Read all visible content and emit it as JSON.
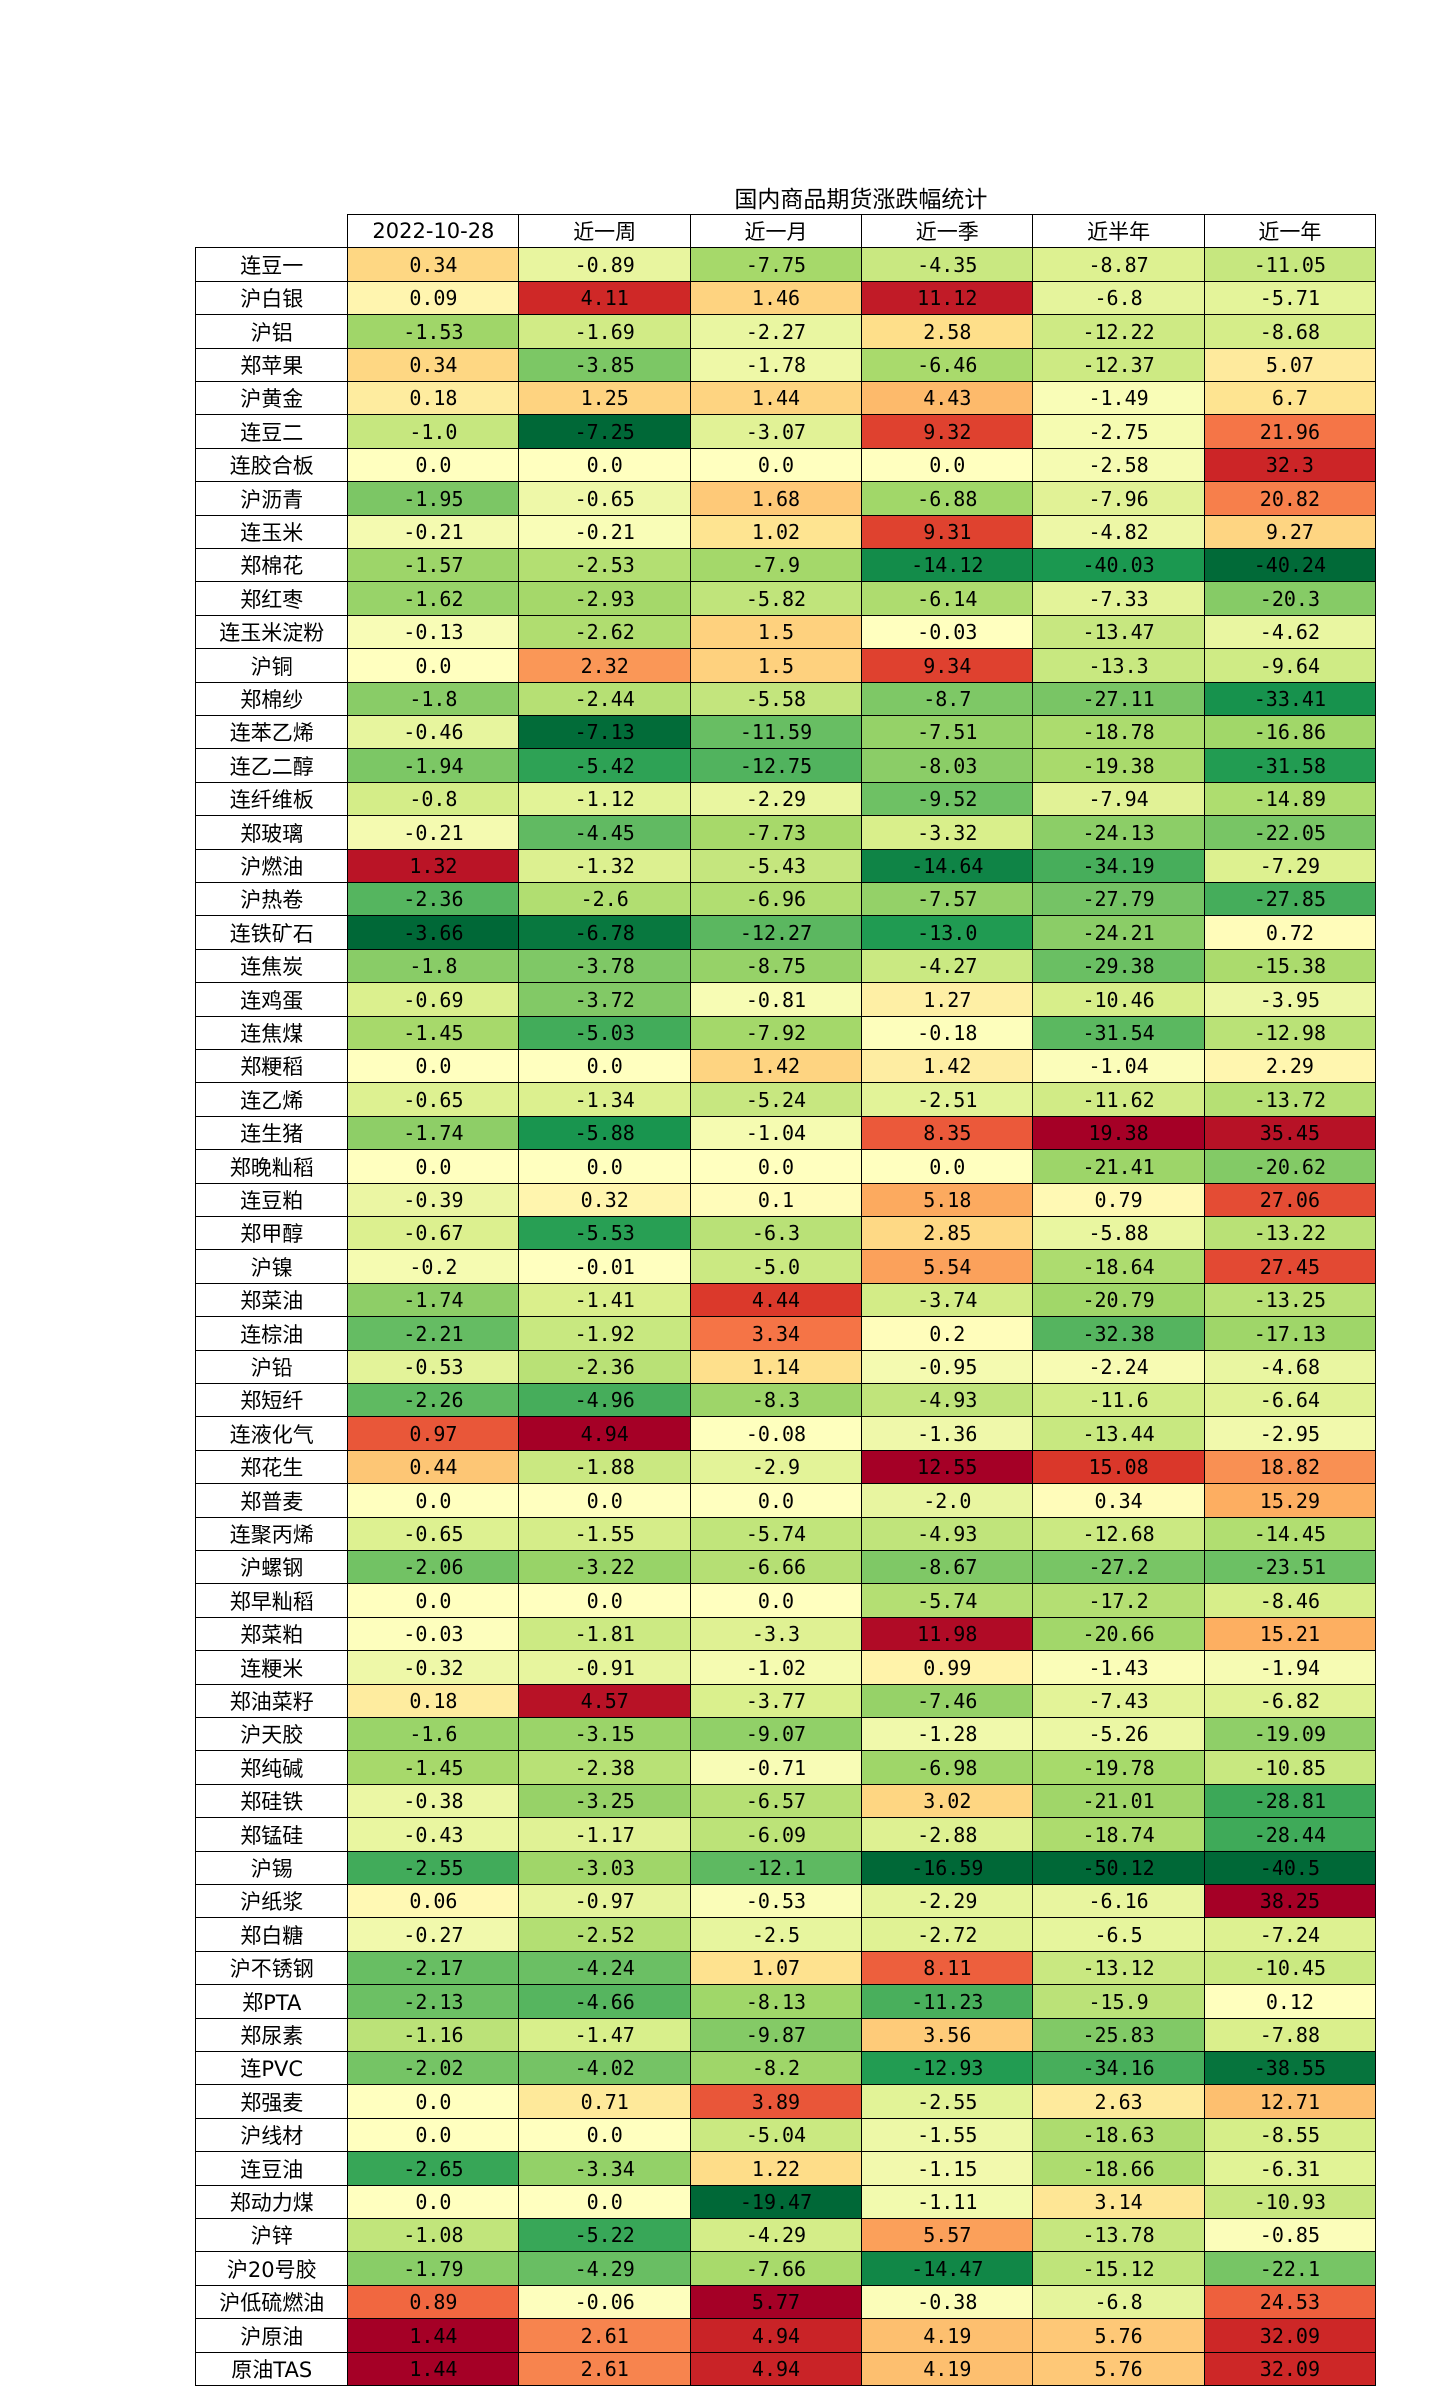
{
  "table": {
    "title": "国内商品期货涨跌幅统计",
    "columns": [
      "2022-10-28",
      "近一周",
      "近一月",
      "近一季",
      "近半年",
      "近一年"
    ],
    "rows": [
      [
        "连豆一",
        "0.34",
        "-0.89",
        "-7.75",
        "-4.35",
        "-8.87",
        "-11.05"
      ],
      [
        "沪白银",
        "0.09",
        "4.11",
        "1.46",
        "11.12",
        "-6.8",
        "-5.71"
      ],
      [
        "沪铝",
        "-1.53",
        "-1.69",
        "-2.27",
        "2.58",
        "-12.22",
        "-8.68"
      ],
      [
        "郑苹果",
        "0.34",
        "-3.85",
        "-1.78",
        "-6.46",
        "-12.37",
        "5.07"
      ],
      [
        "沪黄金",
        "0.18",
        "1.25",
        "1.44",
        "4.43",
        "-1.49",
        "6.7"
      ],
      [
        "连豆二",
        "-1.0",
        "-7.25",
        "-3.07",
        "9.32",
        "-2.75",
        "21.96"
      ],
      [
        "连胶合板",
        "0.0",
        "0.0",
        "0.0",
        "0.0",
        "-2.58",
        "32.3"
      ],
      [
        "沪沥青",
        "-1.95",
        "-0.65",
        "1.68",
        "-6.88",
        "-7.96",
        "20.82"
      ],
      [
        "连玉米",
        "-0.21",
        "-0.21",
        "1.02",
        "9.31",
        "-4.82",
        "9.27"
      ],
      [
        "郑棉花",
        "-1.57",
        "-2.53",
        "-7.9",
        "-14.12",
        "-40.03",
        "-40.24"
      ],
      [
        "郑红枣",
        "-1.62",
        "-2.93",
        "-5.82",
        "-6.14",
        "-7.33",
        "-20.3"
      ],
      [
        "连玉米淀粉",
        "-0.13",
        "-2.62",
        "1.5",
        "-0.03",
        "-13.47",
        "-4.62"
      ],
      [
        "沪铜",
        "0.0",
        "2.32",
        "1.5",
        "9.34",
        "-13.3",
        "-9.64"
      ],
      [
        "郑棉纱",
        "-1.8",
        "-2.44",
        "-5.58",
        "-8.7",
        "-27.11",
        "-33.41"
      ],
      [
        "连苯乙烯",
        "-0.46",
        "-7.13",
        "-11.59",
        "-7.51",
        "-18.78",
        "-16.86"
      ],
      [
        "连乙二醇",
        "-1.94",
        "-5.42",
        "-12.75",
        "-8.03",
        "-19.38",
        "-31.58"
      ],
      [
        "连纤维板",
        "-0.8",
        "-1.12",
        "-2.29",
        "-9.52",
        "-7.94",
        "-14.89"
      ],
      [
        "郑玻璃",
        "-0.21",
        "-4.45",
        "-7.73",
        "-3.32",
        "-24.13",
        "-22.05"
      ],
      [
        "沪燃油",
        "1.32",
        "-1.32",
        "-5.43",
        "-14.64",
        "-34.19",
        "-7.29"
      ],
      [
        "沪热卷",
        "-2.36",
        "-2.6",
        "-6.96",
        "-7.57",
        "-27.79",
        "-27.85"
      ],
      [
        "连铁矿石",
        "-3.66",
        "-6.78",
        "-12.27",
        "-13.0",
        "-24.21",
        "0.72"
      ],
      [
        "连焦炭",
        "-1.8",
        "-3.78",
        "-8.75",
        "-4.27",
        "-29.38",
        "-15.38"
      ],
      [
        "连鸡蛋",
        "-0.69",
        "-3.72",
        "-0.81",
        "1.27",
        "-10.46",
        "-3.95"
      ],
      [
        "连焦煤",
        "-1.45",
        "-5.03",
        "-7.92",
        "-0.18",
        "-31.54",
        "-12.98"
      ],
      [
        "郑粳稻",
        "0.0",
        "0.0",
        "1.42",
        "1.42",
        "-1.04",
        "2.29"
      ],
      [
        "连乙烯",
        "-0.65",
        "-1.34",
        "-5.24",
        "-2.51",
        "-11.62",
        "-13.72"
      ],
      [
        "连生猪",
        "-1.74",
        "-5.88",
        "-1.04",
        "8.35",
        "19.38",
        "35.45"
      ],
      [
        "郑晚籼稻",
        "0.0",
        "0.0",
        "0.0",
        "0.0",
        "-21.41",
        "-20.62"
      ],
      [
        "连豆粕",
        "-0.39",
        "0.32",
        "0.1",
        "5.18",
        "0.79",
        "27.06"
      ],
      [
        "郑甲醇",
        "-0.67",
        "-5.53",
        "-6.3",
        "2.85",
        "-5.88",
        "-13.22"
      ],
      [
        "沪镍",
        "-0.2",
        "-0.01",
        "-5.0",
        "5.54",
        "-18.64",
        "27.45"
      ],
      [
        "郑菜油",
        "-1.74",
        "-1.41",
        "4.44",
        "-3.74",
        "-20.79",
        "-13.25"
      ],
      [
        "连棕油",
        "-2.21",
        "-1.92",
        "3.34",
        "0.2",
        "-32.38",
        "-17.13"
      ],
      [
        "沪铅",
        "-0.53",
        "-2.36",
        "1.14",
        "-0.95",
        "-2.24",
        "-4.68"
      ],
      [
        "郑短纤",
        "-2.26",
        "-4.96",
        "-8.3",
        "-4.93",
        "-11.6",
        "-6.64"
      ],
      [
        "连液化气",
        "0.97",
        "4.94",
        "-0.08",
        "-1.36",
        "-13.44",
        "-2.95"
      ],
      [
        "郑花生",
        "0.44",
        "-1.88",
        "-2.9",
        "12.55",
        "15.08",
        "18.82"
      ],
      [
        "郑普麦",
        "0.0",
        "0.0",
        "0.0",
        "-2.0",
        "0.34",
        "15.29"
      ],
      [
        "连聚丙烯",
        "-0.65",
        "-1.55",
        "-5.74",
        "-4.93",
        "-12.68",
        "-14.45"
      ],
      [
        "沪螺钢",
        "-2.06",
        "-3.22",
        "-6.66",
        "-8.67",
        "-27.2",
        "-23.51"
      ],
      [
        "郑早籼稻",
        "0.0",
        "0.0",
        "0.0",
        "-5.74",
        "-17.2",
        "-8.46"
      ],
      [
        "郑菜粕",
        "-0.03",
        "-1.81",
        "-3.3",
        "11.98",
        "-20.66",
        "15.21"
      ],
      [
        "连粳米",
        "-0.32",
        "-0.91",
        "-1.02",
        "0.99",
        "-1.43",
        "-1.94"
      ],
      [
        "郑油菜籽",
        "0.18",
        "4.57",
        "-3.77",
        "-7.46",
        "-7.43",
        "-6.82"
      ],
      [
        "沪天胶",
        "-1.6",
        "-3.15",
        "-9.07",
        "-1.28",
        "-5.26",
        "-19.09"
      ],
      [
        "郑纯碱",
        "-1.45",
        "-2.38",
        "-0.71",
        "-6.98",
        "-19.78",
        "-10.85"
      ],
      [
        "郑硅铁",
        "-0.38",
        "-3.25",
        "-6.57",
        "3.02",
        "-21.01",
        "-28.81"
      ],
      [
        "郑锰硅",
        "-0.43",
        "-1.17",
        "-6.09",
        "-2.88",
        "-18.74",
        "-28.44"
      ],
      [
        "沪锡",
        "-2.55",
        "-3.03",
        "-12.1",
        "-16.59",
        "-50.12",
        "-40.5"
      ],
      [
        "沪纸浆",
        "0.06",
        "-0.97",
        "-0.53",
        "-2.29",
        "-6.16",
        "38.25"
      ],
      [
        "郑白糖",
        "-0.27",
        "-2.52",
        "-2.5",
        "-2.72",
        "-6.5",
        "-7.24"
      ],
      [
        "沪不锈钢",
        "-2.17",
        "-4.24",
        "1.07",
        "8.11",
        "-13.12",
        "-10.45"
      ],
      [
        "郑PTA",
        "-2.13",
        "-4.66",
        "-8.13",
        "-11.23",
        "-15.9",
        "0.12"
      ],
      [
        "郑尿素",
        "-1.16",
        "-1.47",
        "-9.87",
        "3.56",
        "-25.83",
        "-7.88"
      ],
      [
        "连PVC",
        "-2.02",
        "-4.02",
        "-8.2",
        "-12.93",
        "-34.16",
        "-38.55"
      ],
      [
        "郑强麦",
        "0.0",
        "0.71",
        "3.89",
        "-2.55",
        "2.63",
        "12.71"
      ],
      [
        "沪线材",
        "0.0",
        "0.0",
        "-5.04",
        "-1.55",
        "-18.63",
        "-8.55"
      ],
      [
        "连豆油",
        "-2.65",
        "-3.34",
        "1.22",
        "-1.15",
        "-18.66",
        "-6.31"
      ],
      [
        "郑动力煤",
        "0.0",
        "0.0",
        "-19.47",
        "-1.11",
        "3.14",
        "-10.93"
      ],
      [
        "沪锌",
        "-1.08",
        "-5.22",
        "-4.29",
        "5.57",
        "-13.78",
        "-0.85"
      ],
      [
        "沪20号胶",
        "-1.79",
        "-4.29",
        "-7.66",
        "-14.47",
        "-15.12",
        "-22.1"
      ],
      [
        "沪低硫燃油",
        "0.89",
        "-0.06",
        "5.77",
        "-0.38",
        "-6.8",
        "24.53"
      ],
      [
        "沪原油",
        "1.44",
        "2.61",
        "4.94",
        "4.19",
        "5.76",
        "32.09"
      ],
      [
        "原油TAS",
        "1.44",
        "2.61",
        "4.94",
        "4.19",
        "5.76",
        "32.09"
      ]
    ]
  }
}
